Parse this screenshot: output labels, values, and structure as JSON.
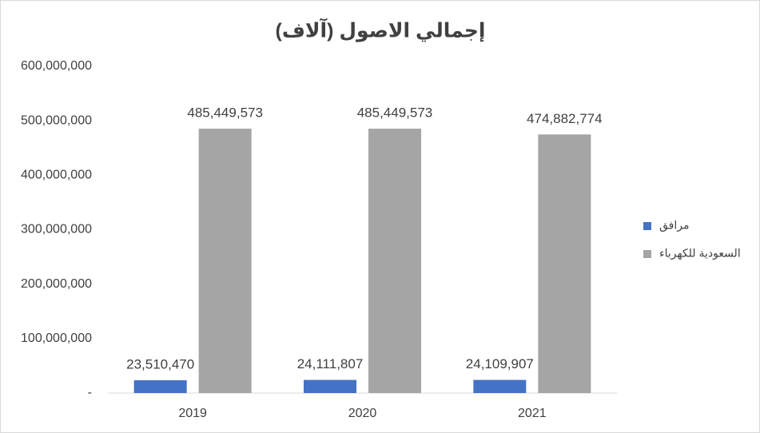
{
  "chart_data": {
    "type": "bar",
    "title": "إجمالي الاصول (آلاف)",
    "categories": [
      "2019",
      "2020",
      "2021"
    ],
    "series": [
      {
        "name": "مرافق",
        "color": "#4472c4",
        "values": [
          23510470,
          24111807,
          24109907
        ],
        "value_labels": [
          "23,510,470",
          "24,111,807",
          "24,109,907"
        ]
      },
      {
        "name": "السعودية للكهرباء",
        "color": "#a5a5a5",
        "values": [
          485449573,
          485449573,
          474882774
        ],
        "value_labels": [
          "485,449,573",
          "485,449,573",
          "474,882,774"
        ]
      }
    ],
    "ylim": [
      0,
      600000000
    ],
    "yticks": [
      {
        "value": 0,
        "label": "-"
      },
      {
        "value": 100000000,
        "label": "100,000,000"
      },
      {
        "value": 200000000,
        "label": "200,000,000"
      },
      {
        "value": 300000000,
        "label": "300,000,000"
      },
      {
        "value": 400000000,
        "label": "400,000,000"
      },
      {
        "value": 500000000,
        "label": "500,000,000"
      },
      {
        "value": 600000000,
        "label": "600,000,000"
      }
    ],
    "grid": false,
    "legend": "right"
  }
}
